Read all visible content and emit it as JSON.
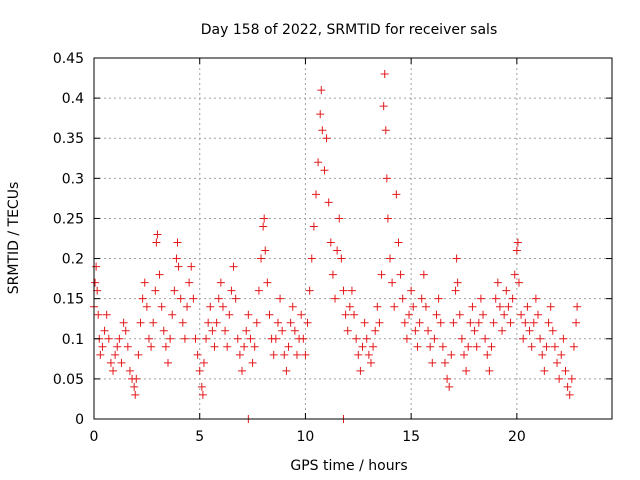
{
  "chart_data": {
    "type": "scatter",
    "title": "Day 158 of 2022, SRMTID for receiver sals",
    "xlabel": "GPS time / hours",
    "ylabel": "SRMTID / TECUs",
    "xlim": [
      0,
      24.5
    ],
    "ylim": [
      0,
      0.45
    ],
    "x_ticks": [
      0,
      5,
      10,
      15,
      20
    ],
    "x_tick_labels": [
      "0",
      "5",
      "10",
      "15",
      "20"
    ],
    "y_ticks": [
      0,
      0.05,
      0.1,
      0.15,
      0.2,
      0.25,
      0.3,
      0.35,
      0.4,
      0.45
    ],
    "y_tick_labels": [
      "0",
      "0.05",
      "0.1",
      "0.15",
      "0.2",
      "0.25",
      "0.3",
      "0.35",
      "0.4",
      "0.45"
    ],
    "grid": true,
    "marker": "plus",
    "marker_color": "#e41a1c",
    "series": [
      {
        "name": "SRMTID",
        "points": [
          [
            0.0,
            0.14
          ],
          [
            0.05,
            0.17
          ],
          [
            0.1,
            0.19
          ],
          [
            0.15,
            0.16
          ],
          [
            0.2,
            0.13
          ],
          [
            0.25,
            0.1
          ],
          [
            0.3,
            0.08
          ],
          [
            0.4,
            0.09
          ],
          [
            0.5,
            0.11
          ],
          [
            0.6,
            0.13
          ],
          [
            0.7,
            0.1
          ],
          [
            0.8,
            0.07
          ],
          [
            0.9,
            0.06
          ],
          [
            1.0,
            0.08
          ],
          [
            1.1,
            0.09
          ],
          [
            1.2,
            0.1
          ],
          [
            1.3,
            0.07
          ],
          [
            1.4,
            0.12
          ],
          [
            1.5,
            0.11
          ],
          [
            1.6,
            0.09
          ],
          [
            1.7,
            0.06
          ],
          [
            1.8,
            0.05
          ],
          [
            1.9,
            0.04
          ],
          [
            1.95,
            0.03
          ],
          [
            2.0,
            0.05
          ],
          [
            2.1,
            0.08
          ],
          [
            2.2,
            0.12
          ],
          [
            2.3,
            0.15
          ],
          [
            2.4,
            0.17
          ],
          [
            2.5,
            0.14
          ],
          [
            2.6,
            0.1
          ],
          [
            2.7,
            0.09
          ],
          [
            2.8,
            0.12
          ],
          [
            2.9,
            0.16
          ],
          [
            2.95,
            0.22
          ],
          [
            3.0,
            0.23
          ],
          [
            3.1,
            0.18
          ],
          [
            3.2,
            0.14
          ],
          [
            3.3,
            0.11
          ],
          [
            3.4,
            0.09
          ],
          [
            3.5,
            0.07
          ],
          [
            3.6,
            0.1
          ],
          [
            3.7,
            0.13
          ],
          [
            3.8,
            0.16
          ],
          [
            3.9,
            0.2
          ],
          [
            3.95,
            0.22
          ],
          [
            4.0,
            0.19
          ],
          [
            4.1,
            0.15
          ],
          [
            4.2,
            0.12
          ],
          [
            4.3,
            0.1
          ],
          [
            4.4,
            0.14
          ],
          [
            4.5,
            0.17
          ],
          [
            4.6,
            0.19
          ],
          [
            4.7,
            0.15
          ],
          [
            4.8,
            0.1
          ],
          [
            4.9,
            0.08
          ],
          [
            5.0,
            0.06
          ],
          [
            5.1,
            0.04
          ],
          [
            5.15,
            0.03
          ],
          [
            5.2,
            0.07
          ],
          [
            5.3,
            0.1
          ],
          [
            5.4,
            0.12
          ],
          [
            5.5,
            0.14
          ],
          [
            5.6,
            0.11
          ],
          [
            5.7,
            0.09
          ],
          [
            5.8,
            0.12
          ],
          [
            5.9,
            0.15
          ],
          [
            6.0,
            0.17
          ],
          [
            6.1,
            0.14
          ],
          [
            6.2,
            0.11
          ],
          [
            6.3,
            0.09
          ],
          [
            6.4,
            0.13
          ],
          [
            6.5,
            0.16
          ],
          [
            6.6,
            0.19
          ],
          [
            6.7,
            0.15
          ],
          [
            6.8,
            0.1
          ],
          [
            6.9,
            0.08
          ],
          [
            7.0,
            0.06
          ],
          [
            7.1,
            0.09
          ],
          [
            7.2,
            0.11
          ],
          [
            7.3,
            0.13
          ],
          [
            7.4,
            0.1
          ],
          [
            7.5,
            0.07
          ],
          [
            7.6,
            0.09
          ],
          [
            7.7,
            0.12
          ],
          [
            7.8,
            0.16
          ],
          [
            7.9,
            0.2
          ],
          [
            8.0,
            0.24
          ],
          [
            8.05,
            0.25
          ],
          [
            8.1,
            0.21
          ],
          [
            8.2,
            0.17
          ],
          [
            8.3,
            0.13
          ],
          [
            8.4,
            0.1
          ],
          [
            8.5,
            0.08
          ],
          [
            8.6,
            0.1
          ],
          [
            8.7,
            0.12
          ],
          [
            8.8,
            0.15
          ],
          [
            8.9,
            0.11
          ],
          [
            9.0,
            0.08
          ],
          [
            9.1,
            0.06
          ],
          [
            9.2,
            0.09
          ],
          [
            9.3,
            0.12
          ],
          [
            9.4,
            0.14
          ],
          [
            9.5,
            0.11
          ],
          [
            9.6,
            0.08
          ],
          [
            9.7,
            0.1
          ],
          [
            9.8,
            0.13
          ],
          [
            9.9,
            0.1
          ],
          [
            10.0,
            0.08
          ],
          [
            10.1,
            0.12
          ],
          [
            10.2,
            0.16
          ],
          [
            10.3,
            0.2
          ],
          [
            10.4,
            0.24
          ],
          [
            10.5,
            0.28
          ],
          [
            10.6,
            0.32
          ],
          [
            10.7,
            0.38
          ],
          [
            10.75,
            0.41
          ],
          [
            10.8,
            0.36
          ],
          [
            10.9,
            0.31
          ],
          [
            11.0,
            0.35
          ],
          [
            11.1,
            0.27
          ],
          [
            11.2,
            0.22
          ],
          [
            11.3,
            0.18
          ],
          [
            11.4,
            0.15
          ],
          [
            11.5,
            0.21
          ],
          [
            11.6,
            0.25
          ],
          [
            11.7,
            0.2
          ],
          [
            11.8,
            0.16
          ],
          [
            11.9,
            0.13
          ],
          [
            12.0,
            0.11
          ],
          [
            12.1,
            0.14
          ],
          [
            12.2,
            0.16
          ],
          [
            12.3,
            0.13
          ],
          [
            12.4,
            0.1
          ],
          [
            12.5,
            0.08
          ],
          [
            12.6,
            0.06
          ],
          [
            12.7,
            0.09
          ],
          [
            12.8,
            0.12
          ],
          [
            12.9,
            0.1
          ],
          [
            13.0,
            0.08
          ],
          [
            13.1,
            0.07
          ],
          [
            13.2,
            0.09
          ],
          [
            13.3,
            0.11
          ],
          [
            13.4,
            0.14
          ],
          [
            13.5,
            0.12
          ],
          [
            13.6,
            0.18
          ],
          [
            13.7,
            0.39
          ],
          [
            13.75,
            0.43
          ],
          [
            13.8,
            0.36
          ],
          [
            13.85,
            0.3
          ],
          [
            13.9,
            0.25
          ],
          [
            14.0,
            0.2
          ],
          [
            14.1,
            0.17
          ],
          [
            14.2,
            0.14
          ],
          [
            14.3,
            0.28
          ],
          [
            14.4,
            0.22
          ],
          [
            14.5,
            0.18
          ],
          [
            14.6,
            0.15
          ],
          [
            14.7,
            0.12
          ],
          [
            14.8,
            0.1
          ],
          [
            14.9,
            0.13
          ],
          [
            15.0,
            0.16
          ],
          [
            15.1,
            0.14
          ],
          [
            15.2,
            0.11
          ],
          [
            15.3,
            0.09
          ],
          [
            15.4,
            0.12
          ],
          [
            15.5,
            0.15
          ],
          [
            15.6,
            0.18
          ],
          [
            15.7,
            0.14
          ],
          [
            15.8,
            0.11
          ],
          [
            15.9,
            0.09
          ],
          [
            16.0,
            0.07
          ],
          [
            16.1,
            0.1
          ],
          [
            16.2,
            0.13
          ],
          [
            16.3,
            0.15
          ],
          [
            16.4,
            0.12
          ],
          [
            16.5,
            0.09
          ],
          [
            16.6,
            0.07
          ],
          [
            16.7,
            0.05
          ],
          [
            16.8,
            0.04
          ],
          [
            16.9,
            0.08
          ],
          [
            17.0,
            0.12
          ],
          [
            17.1,
            0.16
          ],
          [
            17.15,
            0.2
          ],
          [
            17.2,
            0.17
          ],
          [
            17.3,
            0.13
          ],
          [
            17.4,
            0.1
          ],
          [
            17.5,
            0.08
          ],
          [
            17.6,
            0.06
          ],
          [
            17.7,
            0.09
          ],
          [
            17.8,
            0.12
          ],
          [
            17.9,
            0.14
          ],
          [
            18.0,
            0.11
          ],
          [
            18.1,
            0.09
          ],
          [
            18.2,
            0.12
          ],
          [
            18.3,
            0.15
          ],
          [
            18.4,
            0.13
          ],
          [
            18.5,
            0.1
          ],
          [
            18.6,
            0.08
          ],
          [
            18.7,
            0.06
          ],
          [
            18.8,
            0.09
          ],
          [
            18.9,
            0.12
          ],
          [
            19.0,
            0.15
          ],
          [
            19.1,
            0.17
          ],
          [
            19.2,
            0.14
          ],
          [
            19.3,
            0.11
          ],
          [
            19.4,
            0.13
          ],
          [
            19.5,
            0.16
          ],
          [
            19.6,
            0.14
          ],
          [
            19.7,
            0.12
          ],
          [
            19.8,
            0.15
          ],
          [
            19.9,
            0.18
          ],
          [
            20.0,
            0.21
          ],
          [
            20.05,
            0.22
          ],
          [
            20.1,
            0.17
          ],
          [
            20.2,
            0.13
          ],
          [
            20.3,
            0.1
          ],
          [
            20.4,
            0.12
          ],
          [
            20.5,
            0.14
          ],
          [
            20.6,
            0.11
          ],
          [
            20.7,
            0.09
          ],
          [
            20.8,
            0.12
          ],
          [
            20.9,
            0.15
          ],
          [
            21.0,
            0.13
          ],
          [
            21.1,
            0.1
          ],
          [
            21.2,
            0.08
          ],
          [
            21.3,
            0.06
          ],
          [
            21.4,
            0.09
          ],
          [
            21.5,
            0.12
          ],
          [
            21.6,
            0.14
          ],
          [
            21.7,
            0.11
          ],
          [
            21.8,
            0.09
          ],
          [
            21.9,
            0.07
          ],
          [
            22.0,
            0.05
          ],
          [
            22.1,
            0.08
          ],
          [
            22.2,
            0.1
          ],
          [
            22.3,
            0.06
          ],
          [
            22.4,
            0.04
          ],
          [
            22.5,
            0.03
          ],
          [
            22.6,
            0.05
          ],
          [
            22.7,
            0.09
          ],
          [
            22.8,
            0.12
          ],
          [
            22.85,
            0.14
          ],
          [
            7.3,
            0.0
          ],
          [
            11.8,
            0.0
          ]
        ]
      }
    ]
  }
}
